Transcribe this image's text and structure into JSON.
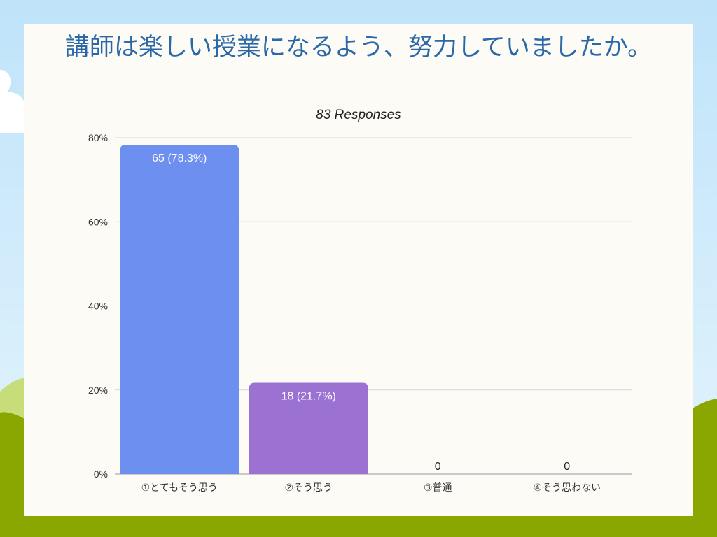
{
  "colors": {
    "card_background": "#fdfbf6",
    "title_text": "#2a68a8",
    "bar_1": "#6d8ff0",
    "bar_2": "#9b72d2",
    "grid": "#d8d8d8",
    "axis_text": "#333333",
    "bar_label": "#ffffff",
    "sky_top": "#bfe3fa",
    "sky_bottom": "#e6f5fc",
    "hill_dark": "#8aa600",
    "hill_light": "#c6dd7a"
  },
  "chart_data": {
    "type": "bar",
    "title": "講師は楽しい授業になるよう、努力していましたか。",
    "subtitle": "83 Responses",
    "categories": [
      "①とてもそう思う",
      "②そう思う",
      "③普通",
      "④そう思わない"
    ],
    "counts": [
      65,
      18,
      0,
      0
    ],
    "values": [
      78.3,
      21.7,
      0,
      0
    ],
    "value_labels": [
      "65 (78.3%)",
      "18 (21.7%)",
      "0",
      "0"
    ],
    "ylim": [
      0,
      80
    ],
    "yticks": [
      0,
      20,
      40,
      60,
      80
    ],
    "ytick_labels": [
      "0%",
      "20%",
      "40%",
      "60%",
      "80%"
    ],
    "grid": true,
    "legend": "none"
  }
}
